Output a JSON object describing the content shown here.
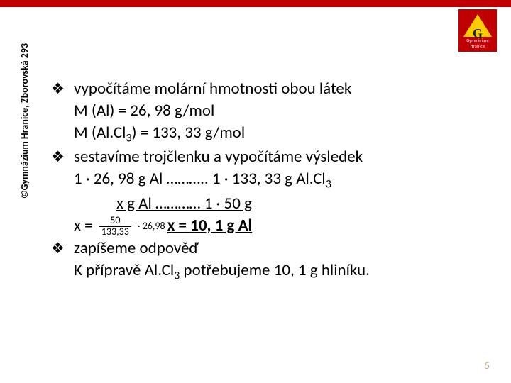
{
  "colors": {
    "accent": "#c00000",
    "logo_triangle": "#ffcc00",
    "logo_letter": "#002b5c",
    "slide_number": "#bfa97a",
    "background": "#ffffff",
    "text": "#000000"
  },
  "logo": {
    "letter": "G",
    "line1": "Gymnázium",
    "line2": "Hranice"
  },
  "sidebar": "©Gymnázium Hranice, Zborovská 293",
  "slide_number": "5",
  "content": {
    "b1": "vypočítáme molární hmotnosti obou látek",
    "l1": "M (Al) = 26, 98 g/mol",
    "l2a": "M (Al.Cl",
    "l2b": ") = 133, 33 g/mol",
    "b2": "sestavíme trojčlenku a vypočítáme výsledek",
    "l3a": "1 · 26, 98 g Al ……….. 1 · 133, 33 g Al.Cl",
    "l3sub": "3",
    "l4": "x g Al ………… 1 · 50 g",
    "l5_pre": "x = ",
    "frac_num": "50",
    "frac_den": "133,33",
    "l5_mid": " · 26,98   ",
    "l5_ans": "x = 10, 1 g Al",
    "b3": "zapíšeme odpověď",
    "l6a": "K přípravě Al.Cl",
    "l6b": " potřebujeme 10, 1 g hliníku."
  }
}
